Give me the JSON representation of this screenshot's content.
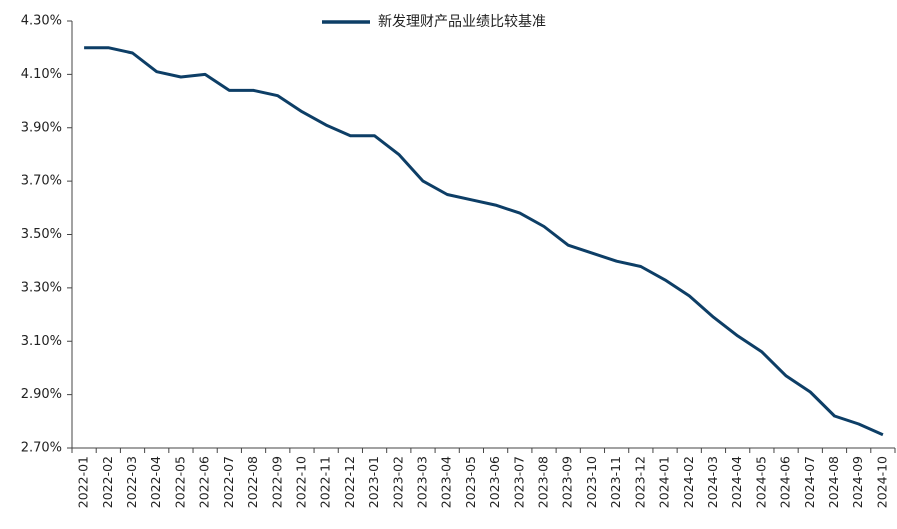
{
  "chart_data": {
    "type": "line",
    "categories": [
      "2022-01",
      "2022-02",
      "2022-03",
      "2022-04",
      "2022-05",
      "2022-06",
      "2022-07",
      "2022-08",
      "2022-09",
      "2022-10",
      "2022-11",
      "2022-12",
      "2023-01",
      "2023-02",
      "2023-03",
      "2023-04",
      "2023-05",
      "2023-06",
      "2023-07",
      "2023-08",
      "2023-09",
      "2023-10",
      "2023-11",
      "2023-12",
      "2024-01",
      "2024-02",
      "2024-03",
      "2024-04",
      "2024-05",
      "2024-06",
      "2024-07",
      "2024-08",
      "2024-09",
      "2024-10"
    ],
    "series": [
      {
        "name": "新发理财产品业绩比较基准",
        "color": "#0d3e66",
        "values": [
          4.2,
          4.2,
          4.18,
          4.11,
          4.09,
          4.1,
          4.04,
          4.04,
          4.02,
          3.96,
          3.91,
          3.87,
          3.87,
          3.8,
          3.7,
          3.65,
          3.63,
          3.61,
          3.58,
          3.53,
          3.46,
          3.43,
          3.4,
          3.38,
          3.33,
          3.27,
          3.19,
          3.12,
          3.06,
          2.97,
          2.91,
          2.82,
          2.79,
          2.75
        ]
      }
    ],
    "ylim": [
      2.7,
      4.3
    ],
    "yticks": [
      {
        "value": 2.7,
        "label": "2.70%"
      },
      {
        "value": 2.9,
        "label": "2.90%"
      },
      {
        "value": 3.1,
        "label": "3.10%"
      },
      {
        "value": 3.3,
        "label": "3.30%"
      },
      {
        "value": 3.5,
        "label": "3.50%"
      },
      {
        "value": 3.7,
        "label": "3.70%"
      },
      {
        "value": 3.9,
        "label": "3.90%"
      },
      {
        "value": 4.1,
        "label": "4.10%"
      },
      {
        "value": 4.3,
        "label": "4.30%"
      }
    ],
    "grid": false,
    "legend": "top"
  }
}
